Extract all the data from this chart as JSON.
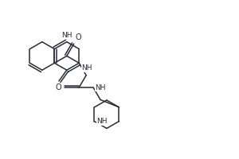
{
  "bg_color": "#ffffff",
  "line_color": "#2a2a3a",
  "line_width": 1.1,
  "font_size": 6.5,
  "fig_w": 3.0,
  "fig_h": 2.0,
  "dpi": 100,
  "xlim": [
    0,
    300
  ],
  "ylim": [
    0,
    200
  ]
}
